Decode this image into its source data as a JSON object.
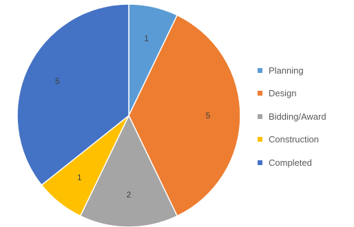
{
  "chart_data": {
    "type": "pie",
    "categories": [
      "Planning",
      "Design",
      "Bidding/Award",
      "Construction",
      "Completed"
    ],
    "values": [
      1,
      5,
      2,
      1,
      5
    ],
    "colors": [
      "#5B9BD5",
      "#ED7D31",
      "#A5A5A5",
      "#FFC000",
      "#4472C4"
    ],
    "start_angle_deg": 0,
    "direction": "clockwise",
    "data_labels": true,
    "legend_position": "right",
    "slice_border_color": "#ffffff"
  }
}
